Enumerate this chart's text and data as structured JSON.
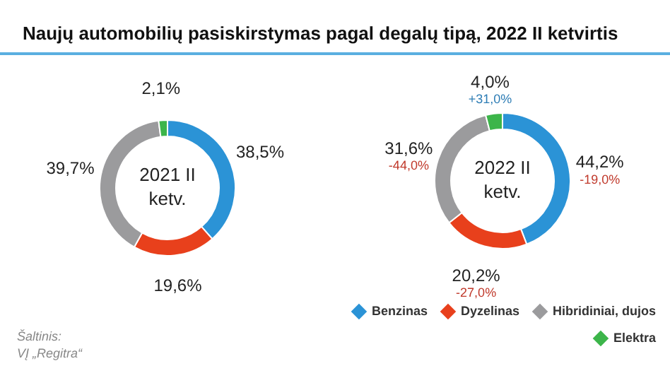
{
  "chart_data": [
    {
      "type": "donut",
      "title": "Naujų automobilių pasiskirstymas pagal degalų tipą, 2022 II ketvirtis",
      "subtitle": "2021 II ketv.",
      "categories": [
        null,
        null,
        null,
        null
      ],
      "values": [
        38.5,
        19.6,
        39.7,
        2.1
      ],
      "value_labels": [
        "38,5%",
        "19,6%",
        "39,7%",
        "2,1%"
      ],
      "colors": [
        "#2b93d6",
        "#e8401c",
        "#9b9b9d",
        "#3cb54a"
      ],
      "annotations": [
        "Šaltinis:",
        "VĮ „Regitra“"
      ]
    },
    {
      "type": "donut",
      "subtitle": "2022 II ketv.",
      "categories": [
        "Benzinas",
        "Dyzelinas",
        "Hibridiniai, dujos",
        "Elektra"
      ],
      "values": [
        44.2,
        20.2,
        31.6,
        4.0
      ],
      "value_labels": [
        "44,2%",
        "20,2%",
        "31,6%",
        "4,0%"
      ],
      "colors": [
        "#2b93d6",
        "#e8401c",
        "#9b9b9d",
        "#3cb54a"
      ],
      "legend": "bottom right",
      "annotations": [
        {
          "text": "-19,0%",
          "x": "Benzinas"
        },
        {
          "text": "-27,0%",
          "x": "Dyzelinas"
        },
        {
          "text": "-44,0%",
          "x": "Hibridiniai, dujos"
        },
        {
          "text": "+31,0%",
          "x": "Elektra"
        }
      ]
    }
  ]
}
